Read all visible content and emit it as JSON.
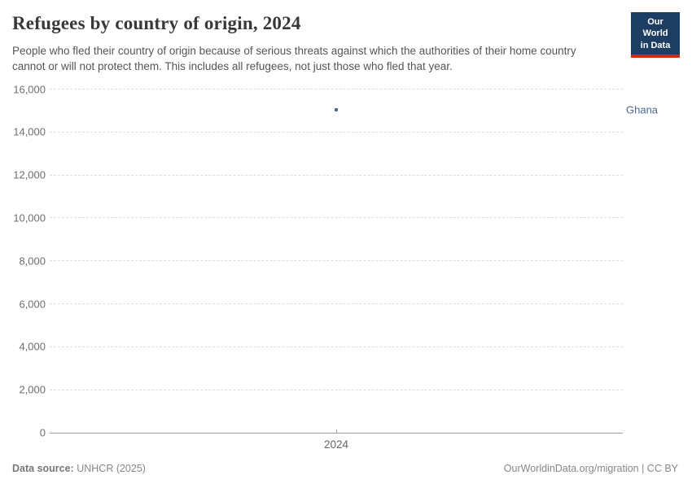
{
  "header": {
    "title": "Refugees by country of origin, 2024",
    "subtitle": "People who fled their country of origin because of serious threats against which the authorities of their home country cannot or will not protect them. This includes all refugees, not just those who fled that year.",
    "logo": {
      "line1": "Our World",
      "line2": "in Data",
      "bg_color": "#1d3d63",
      "accent_color": "#c62d1c"
    }
  },
  "chart_data": {
    "type": "scatter",
    "title": "Refugees by country of origin, 2024",
    "categories": [
      "2024"
    ],
    "series": [
      {
        "name": "Ghana",
        "values": [
          15000
        ],
        "color": "#4c6a9c"
      }
    ],
    "xlabel": "",
    "ylabel": "",
    "ylim": [
      0,
      16000
    ],
    "ytick_step": 2000,
    "ytick_labels": [
      "0",
      "2,000",
      "4,000",
      "6,000",
      "8,000",
      "10,000",
      "12,000",
      "14,000",
      "16,000"
    ],
    "xtick_labels": [
      "2024"
    ],
    "grid": "horizontal-dashed",
    "legend_position": "right-of-plot"
  },
  "footer": {
    "source_label": "Data source:",
    "source_value": " UNHCR (2025)",
    "right_text": "OurWorldinData.org/migration | CC BY"
  }
}
